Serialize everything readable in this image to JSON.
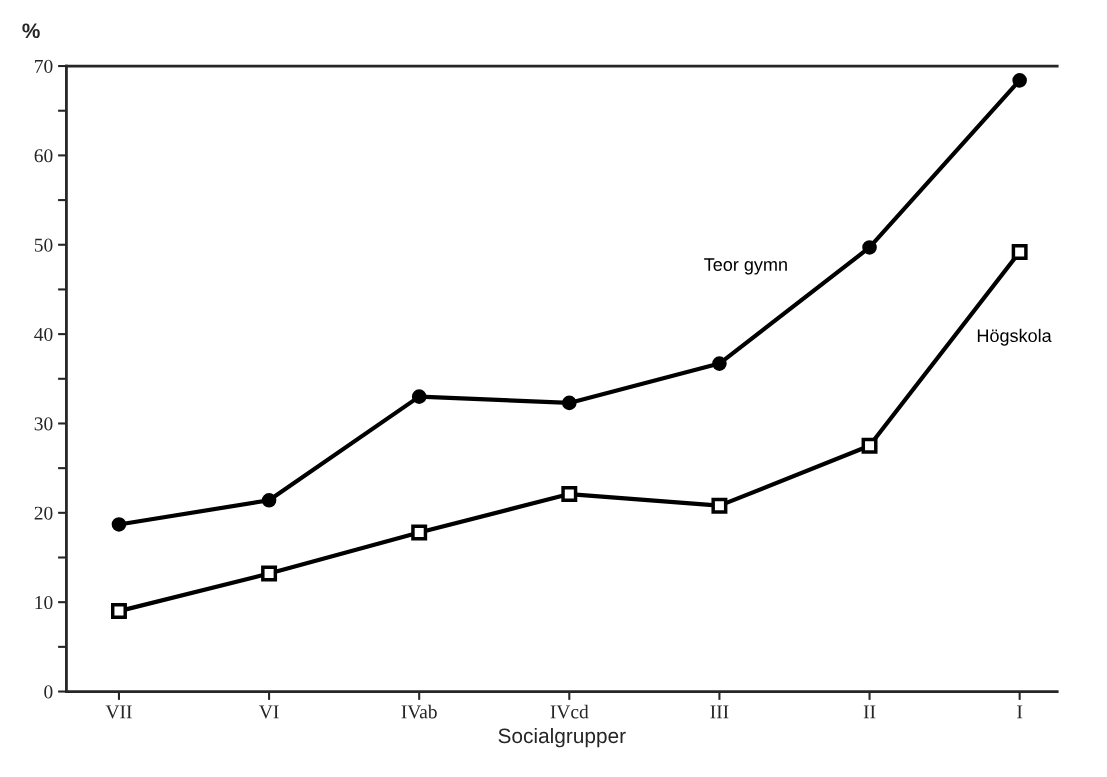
{
  "chart_data": {
    "type": "line",
    "xlabel": "Socialgrupper",
    "ylabel": "%",
    "categories": [
      "VII",
      "VI",
      "IVab",
      "IVcd",
      "III",
      "II",
      "I"
    ],
    "series": [
      {
        "name": "Teor gymn",
        "color": "#000000",
        "marker": "circle",
        "values": [
          18.7,
          21.4,
          33.0,
          32.3,
          36.7,
          49.7,
          68.4
        ]
      },
      {
        "name": "Högskola",
        "color": "#000000",
        "marker": "square",
        "values": [
          9.0,
          13.2,
          17.8,
          22.1,
          20.8,
          27.5,
          49.2
        ]
      }
    ],
    "ylim": [
      0,
      70
    ],
    "yticks": [
      0,
      {
        "value": 5,
        "label": null
      },
      10,
      {
        "value": 15,
        "label": null
      },
      20,
      {
        "value": 25,
        "label": null
      },
      30,
      {
        "value": 35,
        "label": null
      },
      40,
      {
        "value": 45,
        "label": null
      },
      50,
      {
        "value": 55,
        "label": null
      },
      60,
      {
        "value": 65,
        "label": null
      },
      70
    ],
    "grid": false,
    "legend": false,
    "line_style": "solid"
  }
}
